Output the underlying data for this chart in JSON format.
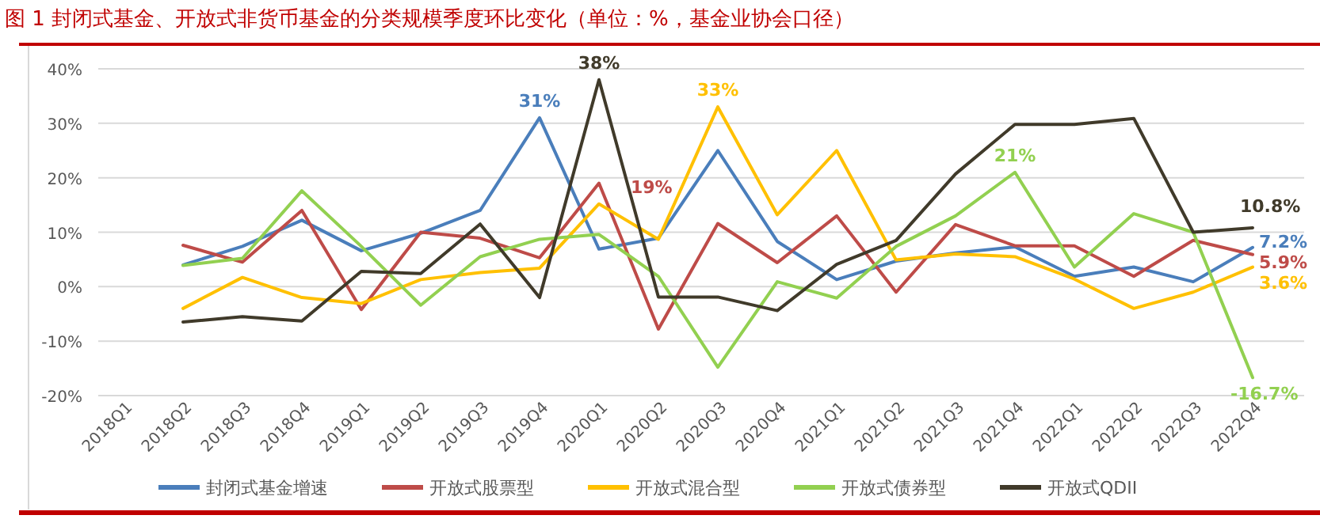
{
  "chart_data": {
    "type": "line",
    "title": "图 1  封闭式基金、开放式非货币基金的分类规模季度环比变化（单位：%，基金业协会口径）",
    "categories": [
      "2018Q1",
      "2018Q2",
      "2018Q3",
      "2018Q4",
      "2019Q1",
      "2019Q2",
      "2019Q3",
      "2019Q4",
      "2020Q1",
      "2020Q2",
      "2020Q3",
      "2020Q4",
      "2021Q1",
      "2021Q2",
      "2021Q3",
      "2021Q4",
      "2022Q1",
      "2022Q2",
      "2022Q3",
      "2022Q4"
    ],
    "series": [
      {
        "name": "封闭式基金增速",
        "color": "#4a7ebb",
        "values": [
          null,
          4.0,
          7.4,
          12.2,
          6.6,
          9.8,
          14,
          31,
          6.9,
          8.9,
          25,
          8.3,
          1.3,
          4.7,
          6.2,
          7.3,
          1.9,
          3.6,
          0.9,
          7.2
        ],
        "value_labels": [
          null,
          null,
          null,
          null,
          null,
          null,
          null,
          "31%",
          null,
          null,
          null,
          null,
          null,
          null,
          null,
          null,
          null,
          null,
          null,
          "7.2%"
        ]
      },
      {
        "name": "开放式股票型",
        "color": "#be4b48",
        "values": [
          null,
          7.6,
          4.5,
          14,
          -4.2,
          10,
          8.9,
          5.3,
          19,
          -7.8,
          11.6,
          4.4,
          13,
          -1.0,
          11.4,
          7.5,
          7.5,
          1.9,
          8.5,
          5.9
        ],
        "value_labels": [
          null,
          null,
          null,
          null,
          null,
          null,
          null,
          null,
          "19%",
          null,
          null,
          null,
          null,
          null,
          null,
          null,
          null,
          null,
          null,
          "5.9%"
        ]
      },
      {
        "name": "开放式混合型",
        "color": "#ffc000",
        "values": [
          null,
          -4.0,
          1.7,
          -2.0,
          -3.1,
          1.3,
          2.6,
          3.4,
          15.2,
          8.7,
          33,
          13.2,
          25,
          4.9,
          6.0,
          5.5,
          1.4,
          -4.0,
          -1.0,
          3.6
        ],
        "value_labels": [
          null,
          null,
          null,
          null,
          null,
          null,
          null,
          null,
          null,
          null,
          "33%",
          null,
          null,
          null,
          null,
          null,
          null,
          null,
          null,
          "3.6%"
        ]
      },
      {
        "name": "开放式债券型",
        "color": "#92d050",
        "values": [
          null,
          3.9,
          5.2,
          17.6,
          7.4,
          -3.4,
          5.5,
          8.7,
          9.6,
          1.9,
          -14.8,
          0.9,
          -2.1,
          7.4,
          13,
          21,
          3.6,
          13.4,
          10.0,
          -16.7
        ],
        "value_labels": [
          null,
          null,
          null,
          null,
          null,
          null,
          null,
          null,
          null,
          null,
          null,
          null,
          null,
          null,
          null,
          "21%",
          null,
          null,
          null,
          "-16.7%"
        ]
      },
      {
        "name": "开放式QDII",
        "color": "#403a2a",
        "values": [
          null,
          -6.5,
          -5.5,
          -6.3,
          2.8,
          2.4,
          11.5,
          -2.0,
          38,
          -1.9,
          -1.9,
          -4.4,
          4.1,
          8.5,
          20.7,
          29.8,
          29.8,
          30.9,
          10.0,
          10.8
        ],
        "value_labels": [
          null,
          null,
          null,
          null,
          null,
          null,
          null,
          null,
          "38%",
          null,
          null,
          null,
          null,
          null,
          null,
          null,
          null,
          null,
          null,
          "10.8%"
        ]
      }
    ],
    "ylim": [
      -20,
      40
    ],
    "yticks": [
      {
        "value": -20,
        "label": "-20%"
      },
      {
        "value": -10,
        "label": "-10%"
      },
      {
        "value": 0,
        "label": "0%"
      },
      {
        "value": 10,
        "label": "10%"
      },
      {
        "value": 20,
        "label": "20%"
      },
      {
        "value": 30,
        "label": "30%"
      },
      {
        "value": 40,
        "label": "40%"
      }
    ],
    "grid": "y",
    "legend": "bottom",
    "marker": "none",
    "line_style": "solid"
  }
}
